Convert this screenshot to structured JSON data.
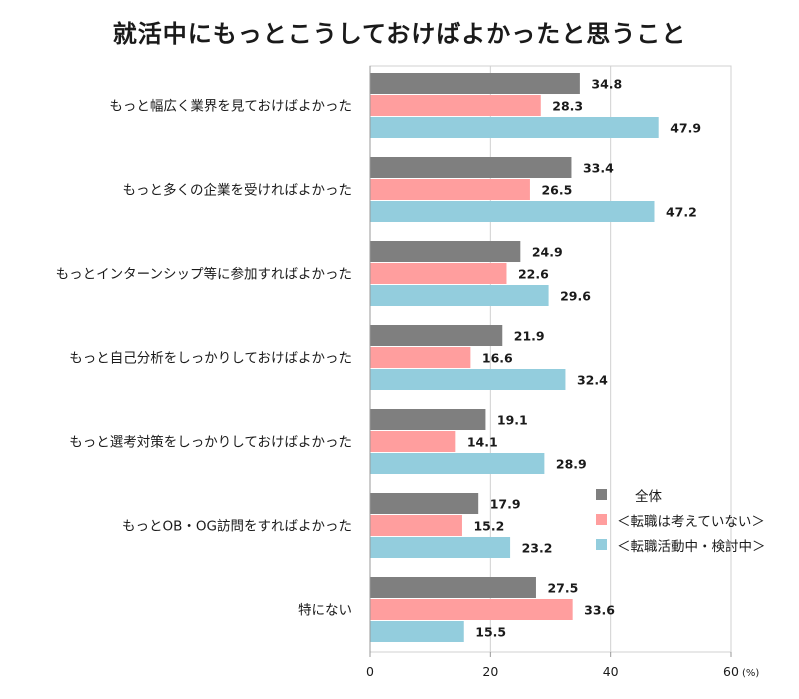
{
  "chart_data": {
    "type": "bar",
    "orientation": "horizontal",
    "title": "就活中にもっとこうしておけばよかったと思うこと",
    "unit_label": "(%)",
    "categories": [
      "もっと幅広く業界を見ておけばよかった",
      "もっと多くの企業を受ければよかった",
      "もっとインターンシップ等に参加すればよかった",
      "もっと自己分析をしっかりしておけばよかった",
      "もっと選考対策をしっかりしておけばよかった",
      "もっとOB・OG訪問をすればよかった",
      "特にない"
    ],
    "series": [
      {
        "name": "全体",
        "color": "#7f7f7f",
        "values": [
          34.8,
          33.4,
          24.9,
          21.9,
          19.1,
          17.9,
          27.5
        ]
      },
      {
        "name": "＜転職は考えていない＞",
        "color": "#ff9e9e",
        "values": [
          28.3,
          26.5,
          22.6,
          16.6,
          14.1,
          15.2,
          33.6
        ]
      },
      {
        "name": "＜転職活動中・検討中＞",
        "color": "#93cddd",
        "values": [
          47.9,
          47.2,
          29.6,
          32.4,
          28.9,
          23.2,
          15.5
        ]
      }
    ],
    "xlim": [
      0,
      60
    ],
    "xticks": [
      0,
      20,
      40,
      60
    ],
    "legend_position": "right"
  }
}
